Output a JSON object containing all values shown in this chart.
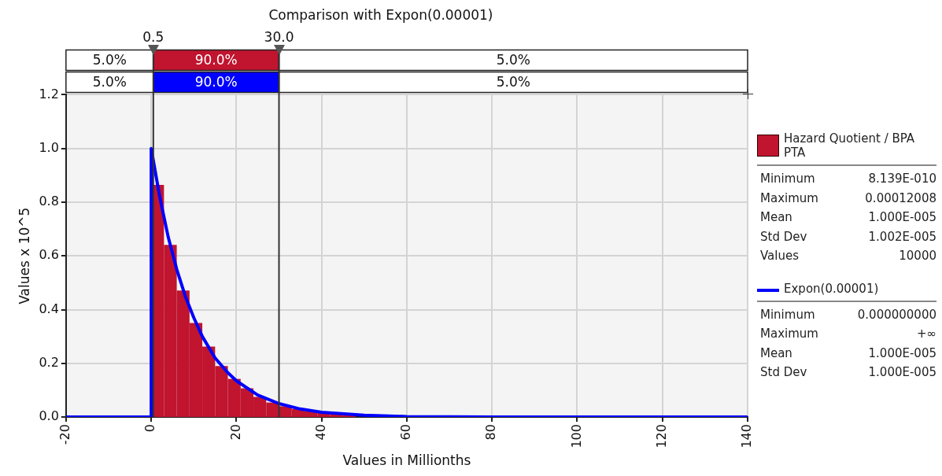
{
  "chart_data": {
    "type": "histogram",
    "title": "Comparison with Expon(0.00001)",
    "xlabel": "Values in Millionths",
    "ylabel": "Values x 10^5",
    "bins": [
      0,
      3,
      6,
      9,
      12,
      15,
      18,
      21,
      24,
      27,
      30,
      33,
      36,
      39,
      42,
      45,
      48
    ],
    "series": [
      {
        "name": "Hazard Quotient / BPA PTA",
        "color": "#c0142f",
        "values": [
          0.864,
          0.641,
          0.471,
          0.35,
          0.262,
          0.19,
          0.142,
          0.107,
          0.075,
          0.054,
          0.04,
          0.03,
          0.022,
          0.016,
          0.012,
          0.009
        ]
      },
      {
        "type": "line",
        "name": "Expon(0.00001)",
        "color": "#0000ff",
        "x": [
          -20,
          0,
          0,
          2,
          4,
          6,
          8,
          10,
          12,
          15,
          18,
          20,
          25,
          30,
          35,
          40,
          50,
          60,
          80,
          100,
          140
        ],
        "values": [
          0,
          0,
          1.0,
          0.82,
          0.67,
          0.55,
          0.45,
          0.37,
          0.3,
          0.22,
          0.165,
          0.135,
          0.082,
          0.05,
          0.03,
          0.018,
          0.007,
          0.002,
          0,
          0,
          0
        ]
      }
    ],
    "xlim": [
      -20,
      140
    ],
    "xticks": [
      -20,
      0,
      20,
      40,
      60,
      80,
      100,
      120,
      140
    ],
    "ylim": [
      0,
      1.2
    ],
    "yticks": [
      {
        "value": 0,
        "label": "0.0"
      },
      {
        "value": 0.2,
        "label": "0.2"
      },
      {
        "value": 0.4,
        "label": "0.4"
      },
      {
        "value": 0.6,
        "label": "0.6"
      },
      {
        "value": 0.8,
        "label": "0.8"
      },
      {
        "value": 1,
        "label": "1.0"
      },
      {
        "value": 1.2,
        "label": "1.2"
      }
    ],
    "grid": true,
    "legend": "right",
    "marker": "none",
    "ref_lines": [
      {
        "axis": "x",
        "value": 0.5,
        "label": "0.5"
      },
      {
        "axis": "x",
        "value": 30,
        "label": "30.0"
      }
    ],
    "annotations": [
      "5.0%",
      "90.0%",
      "5.0%",
      "5.0%",
      "90.0%",
      "5.0%",
      "Minimum",
      "8.139E-010",
      "Maximum",
      "0.00012008",
      "Mean",
      "1.000E-005",
      "Std Dev",
      "1.002E-005",
      "Values",
      "10000",
      "Minimum",
      "0.000000000",
      "Maximum",
      "+∞",
      "Mean",
      "1.000E-005",
      "Std Dev",
      "1.000E-005"
    ]
  }
}
